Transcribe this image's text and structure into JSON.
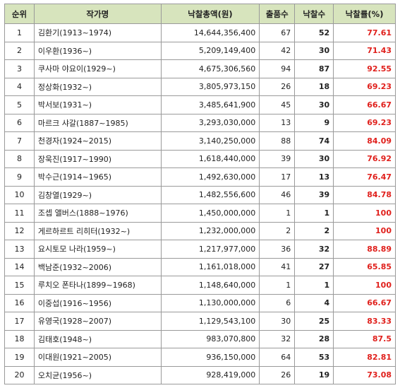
{
  "table": {
    "header": [
      "순위",
      "작가명",
      "낙찰총액(원)",
      "출품수",
      "낙찰수",
      "낙찰률(%)"
    ],
    "rows": [
      [
        "1",
        "김환기(1913~1974)",
        "14,644,356,400",
        "67",
        "52",
        "77.61"
      ],
      [
        "2",
        "이우환(1936~)",
        "5,209,149,400",
        "42",
        "30",
        "71.43"
      ],
      [
        "3",
        "쿠사마 야요이(1929~)",
        "4,675,306,560",
        "94",
        "87",
        "92.55"
      ],
      [
        "4",
        "정상화(1932~)",
        "3,805,973,150",
        "26",
        "18",
        "69.23"
      ],
      [
        "5",
        "박서보(1931~)",
        "3,485,641,900",
        "45",
        "30",
        "66.67"
      ],
      [
        "6",
        "마르크 샤갈(1887~1985)",
        "3,293,030,000",
        "13",
        "9",
        "69.23"
      ],
      [
        "7",
        "천경자(1924~2015)",
        "3,140,250,000",
        "88",
        "74",
        "84.09"
      ],
      [
        "8",
        "장욱진(1917~1990)",
        "1,618,440,000",
        "39",
        "30",
        "76.92"
      ],
      [
        "9",
        "박수근(1914~1965)",
        "1,492,630,000",
        "17",
        "13",
        "76.47"
      ],
      [
        "10",
        "김창열(1929~)",
        "1,482,556,600",
        "46",
        "39",
        "84.78"
      ],
      [
        "11",
        "조셉 앨버스(1888~1976)",
        "1,450,000,000",
        "1",
        "1",
        "100"
      ],
      [
        "12",
        "게르하르트 리히터(1932~)",
        "1,232,000,000",
        "2",
        "2",
        "100"
      ],
      [
        "13",
        "요시토모 나라(1959~)",
        "1,217,977,000",
        "36",
        "32",
        "88.89"
      ],
      [
        "14",
        "백남준(1932~2006)",
        "1,161,018,000",
        "41",
        "27",
        "65.85"
      ],
      [
        "15",
        "루치오 폰타나(1899~1968)",
        "1,148,640,000",
        "1",
        "1",
        "100"
      ],
      [
        "16",
        "이중섭(1916~1956)",
        "1,130,000,000",
        "6",
        "4",
        "66.67"
      ],
      [
        "17",
        "유영국(1928~2007)",
        "1,129,543,100",
        "30",
        "25",
        "83.33"
      ],
      [
        "18",
        "김태호(1948~)",
        "983,070,800",
        "32",
        "28",
        "87.5"
      ],
      [
        "19",
        "이대원(1921~2005)",
        "936,150,000",
        "64",
        "53",
        "82.81"
      ],
      [
        "20",
        "오치균(1956~)",
        "928,419,000",
        "26",
        "19",
        "73.08"
      ]
    ]
  }
}
